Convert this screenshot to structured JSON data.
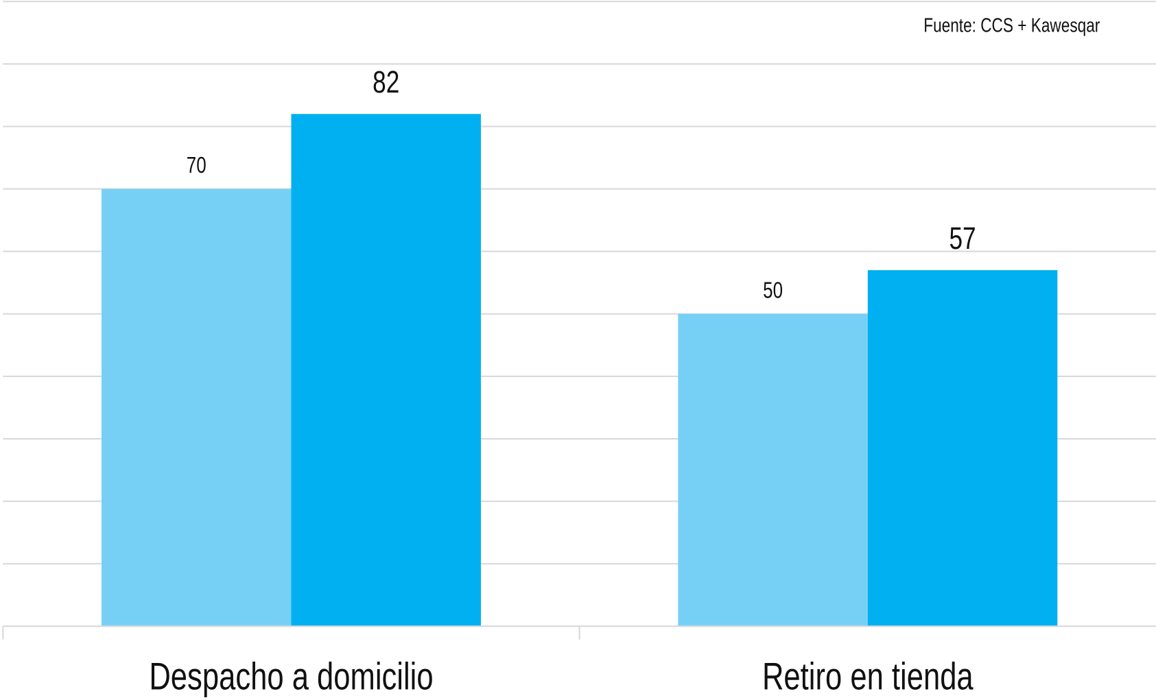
{
  "chart_data": {
    "type": "bar",
    "source": "Fuente: CCS + Kawesqar",
    "categories": [
      "Despacho a domicilio",
      "Retiro en tienda"
    ],
    "series": [
      {
        "color": "#76d0f5",
        "values": [
          70,
          50
        ]
      },
      {
        "color": "#00b0f0",
        "values": [
          82,
          57
        ]
      }
    ],
    "ylim": [
      0,
      100
    ],
    "yticks": [
      0,
      10,
      20,
      30,
      40,
      50,
      60,
      70,
      80,
      90,
      100
    ],
    "grid": true
  }
}
